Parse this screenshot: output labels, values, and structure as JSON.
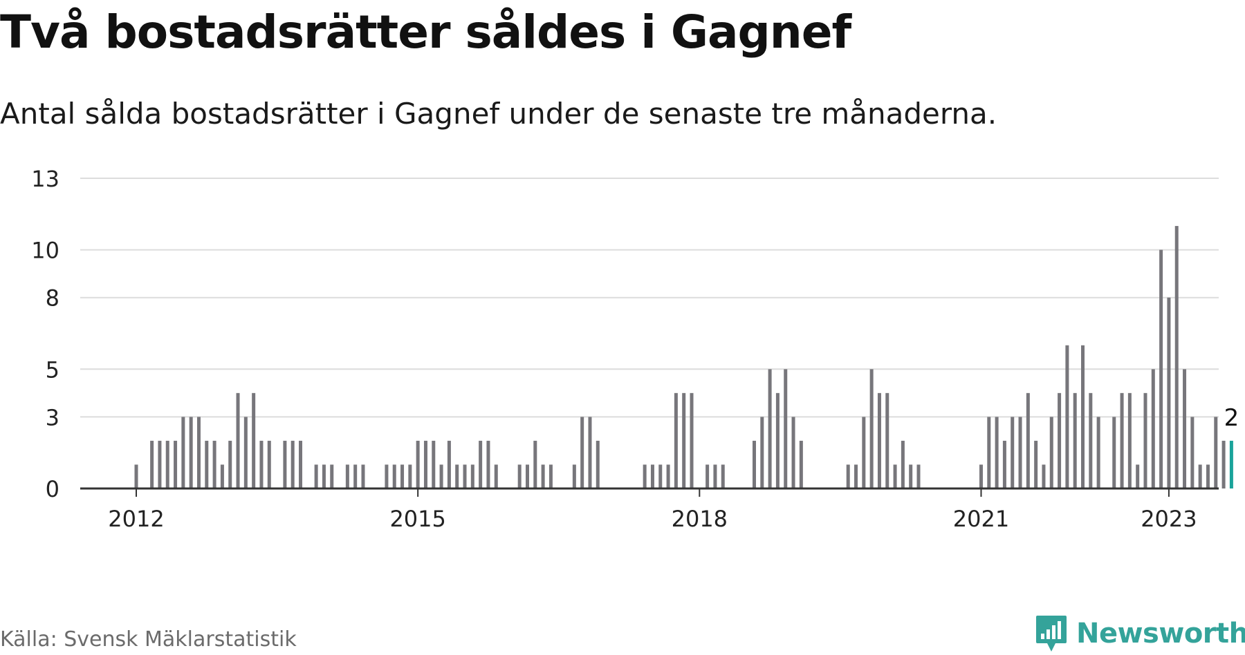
{
  "title": "Två bostadsrätter såldes i Gagnef",
  "subtitle": "Antal sålda bostadsrätter i Gagnef under de senaste tre månaderna.",
  "source": "Källa: Svensk Mäklarstatistik",
  "brand": "Newsworthy",
  "colors": {
    "bar": "#77767b",
    "highlight": "#1aa39a",
    "grid": "#dcdcdc",
    "axis": "#333333",
    "brand": "#34a39a"
  },
  "chart_data": {
    "type": "bar",
    "x_start": "2012-01",
    "y_ticks": [
      0,
      3,
      5,
      8,
      10,
      13
    ],
    "x_ticks": [
      "2012",
      "2015",
      "2018",
      "2021",
      "2023"
    ],
    "ylim": [
      0,
      13
    ],
    "grid": true,
    "highlight_last": true,
    "last_label": "2",
    "values": [
      1,
      0,
      2,
      2,
      2,
      2,
      3,
      3,
      3,
      2,
      2,
      1,
      2,
      4,
      3,
      4,
      2,
      2,
      0,
      2,
      2,
      2,
      0,
      1,
      1,
      1,
      0,
      1,
      1,
      1,
      0,
      0,
      1,
      1,
      1,
      1,
      2,
      2,
      2,
      1,
      2,
      1,
      1,
      1,
      2,
      2,
      1,
      0,
      0,
      1,
      1,
      2,
      1,
      1,
      0,
      0,
      1,
      3,
      3,
      2,
      0,
      0,
      0,
      0,
      0,
      1,
      1,
      1,
      1,
      4,
      4,
      4,
      0,
      1,
      1,
      1,
      0,
      0,
      0,
      2,
      3,
      5,
      4,
      5,
      3,
      2,
      0,
      0,
      0,
      0,
      0,
      1,
      1,
      3,
      5,
      4,
      4,
      1,
      2,
      1,
      1,
      0,
      0,
      0,
      0,
      0,
      0,
      0,
      1,
      3,
      3,
      2,
      3,
      3,
      4,
      2,
      1,
      3,
      4,
      6,
      4,
      6,
      4,
      3,
      0,
      3,
      4,
      4,
      1,
      4,
      5,
      10,
      8,
      11,
      5,
      3,
      1,
      1,
      3,
      2,
      2
    ]
  }
}
